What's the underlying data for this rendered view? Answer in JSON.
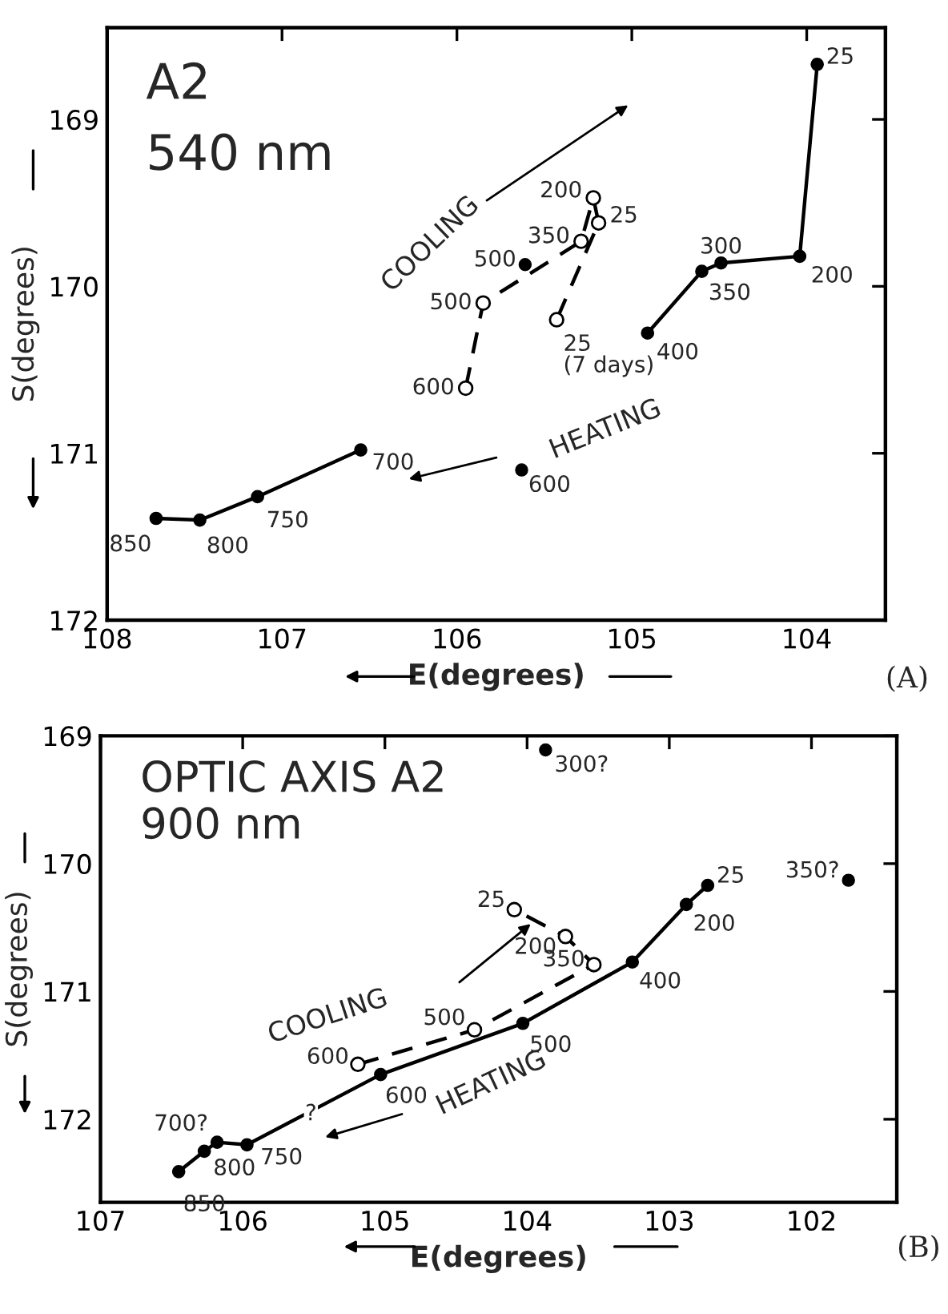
{
  "chart_data": [
    {
      "type": "line",
      "title": "A2",
      "subtitle": "540 nm",
      "xlabel": "E(degrees)",
      "ylabel": "S(degrees)",
      "xlim": [
        108,
        103.55
      ],
      "ylim": [
        172,
        168.45
      ],
      "xticks": [
        108,
        107,
        106,
        105,
        104
      ],
      "yticks": [
        169,
        170,
        171,
        172
      ],
      "grid": false,
      "annotations": [
        {
          "text": "25",
          "x": 103.94,
          "y": 168.67
        },
        {
          "text": "200",
          "x": 104.04,
          "y": 169.82
        },
        {
          "text": "300",
          "x": 104.49,
          "y": 169.86
        },
        {
          "text": "350",
          "x": 104.6,
          "y": 169.91
        },
        {
          "text": "400",
          "x": 104.91,
          "y": 170.28
        },
        {
          "text": "700",
          "x": 106.55,
          "y": 170.98
        },
        {
          "text": "750",
          "x": 107.14,
          "y": 171.26
        },
        {
          "text": "800",
          "x": 107.47,
          "y": 171.4
        },
        {
          "text": "850",
          "x": 107.72,
          "y": 171.39
        },
        {
          "text": "500",
          "x": 105.61,
          "y": 169.87
        },
        {
          "text": "600",
          "x": 105.63,
          "y": 171.1
        },
        {
          "text": "600",
          "x": 105.95,
          "y": 170.61
        },
        {
          "text": "500",
          "x": 105.85,
          "y": 170.1
        },
        {
          "text": "350",
          "x": 105.29,
          "y": 169.73
        },
        {
          "text": "200",
          "x": 105.22,
          "y": 169.47
        },
        {
          "text": "25",
          "x": 105.19,
          "y": 169.62
        },
        {
          "text": "25\n(7 days)",
          "x": 105.43,
          "y": 170.2
        },
        "(A)"
      ],
      "series": [
        {
          "name": "HEATING",
          "color": "#000000",
          "marker": "circle",
          "line_style": "solid",
          "x": [
            103.94,
            104.04,
            104.49,
            104.6,
            104.91,
            null,
            106.55,
            107.14,
            107.47,
            107.72
          ],
          "values": [
            168.67,
            169.82,
            169.86,
            169.91,
            170.28,
            null,
            170.98,
            171.26,
            171.4,
            171.39
          ]
        },
        {
          "type": "scatter",
          "color": "#000000",
          "marker": "circle",
          "x": [
            105.61,
            105.63
          ],
          "values": [
            169.87,
            171.1
          ]
        },
        {
          "name": "COOLING",
          "color": "#000000",
          "marker": "circle",
          "line_style": "dashed",
          "x": [
            105.95,
            105.85,
            105.29,
            105.22,
            105.19,
            105.43
          ],
          "values": [
            170.61,
            170.1,
            169.73,
            169.47,
            169.62,
            170.2
          ]
        }
      ]
    },
    {
      "type": "line",
      "title": "OPTIC AXIS A2",
      "subtitle": "900 nm",
      "xlabel": "E(degrees)",
      "ylabel": "S(degrees)",
      "xlim": [
        107,
        101.4
      ],
      "ylim": [
        172.65,
        169
      ],
      "xticks": [
        107,
        106,
        105,
        104,
        103,
        102
      ],
      "yticks": [
        169,
        170,
        171,
        172
      ],
      "grid": false,
      "annotations": [
        {
          "text": "25",
          "x": 102.73,
          "y": 170.17
        },
        {
          "text": "200",
          "x": 102.88,
          "y": 170.32
        },
        {
          "text": "400",
          "x": 103.26,
          "y": 170.77
        },
        {
          "text": "500",
          "x": 104.03,
          "y": 171.25
        },
        {
          "text": "600",
          "x": 105.03,
          "y": 171.65
        },
        {
          "text": "750",
          "x": 105.97,
          "y": 172.2
        },
        {
          "text": "700?",
          "x": 106.18,
          "y": 172.18
        },
        {
          "text": "800",
          "x": 106.27,
          "y": 172.25
        },
        {
          "text": "850",
          "x": 106.45,
          "y": 172.41
        },
        {
          "text": "300?",
          "x": 103.87,
          "y": 169.11
        },
        {
          "text": "350?",
          "x": 101.74,
          "y": 170.13
        },
        {
          "text": "600",
          "x": 105.19,
          "y": 171.57
        },
        {
          "text": "500",
          "x": 104.37,
          "y": 171.3
        },
        {
          "text": "350",
          "x": 103.53,
          "y": 170.79
        },
        {
          "text": "200",
          "x": 103.73,
          "y": 170.57
        },
        {
          "text": "25",
          "x": 104.09,
          "y": 170.36
        },
        {
          "text": "?",
          "x": 105.52,
          "y": 171.96
        },
        "(B)"
      ],
      "series": [
        {
          "name": "HEATING",
          "color": "#000000",
          "marker": "circle",
          "line_style": "solid",
          "x": [
            102.73,
            102.88,
            103.26,
            104.03,
            105.03,
            105.97,
            106.18,
            106.27,
            106.45
          ],
          "values": [
            170.17,
            170.32,
            170.77,
            171.25,
            171.65,
            172.2,
            172.18,
            172.25,
            172.41
          ]
        },
        {
          "type": "scatter",
          "color": "#000000",
          "marker": "circle",
          "x": [
            103.87,
            101.74
          ],
          "values": [
            169.11,
            170.13
          ]
        },
        {
          "name": "COOLING",
          "color": "#000000",
          "marker": "circle",
          "line_style": "dashed",
          "x": [
            105.19,
            104.37,
            103.53,
            103.73,
            104.09
          ],
          "values": [
            171.57,
            171.3,
            170.79,
            170.57,
            170.36
          ]
        }
      ]
    }
  ]
}
